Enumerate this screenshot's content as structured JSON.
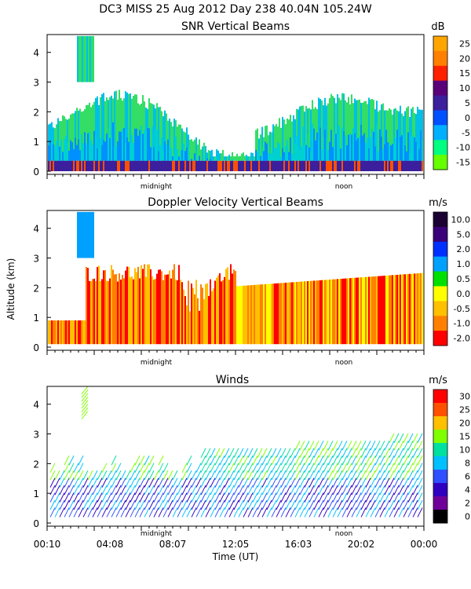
{
  "header": {
    "title": "DC3 MISS  25 Aug 2012 Day 238 40.04N 105.24W"
  },
  "chart_data": [
    {
      "type": "heatmap",
      "title": "SNR Vertical Beams",
      "ylabel": "",
      "ylim": [
        0,
        4.6
      ],
      "yticks": [
        "0",
        "1",
        "2",
        "3",
        "4"
      ],
      "markers": [
        "midnight",
        "noon"
      ],
      "colorbar": {
        "unit": "dB",
        "labels": [
          "25",
          "20",
          "15",
          "10",
          "5",
          "0",
          "-5",
          "-10",
          "-15"
        ],
        "colors": [
          "#ffa500",
          "#ff7f00",
          "#ff2000",
          "#5a0078",
          "#3b1f9c",
          "#0050ff",
          "#00b0ff",
          "#00ff80",
          "#66ff00"
        ]
      }
    },
    {
      "type": "heatmap",
      "title": "Doppler Velocity Vertical Beams",
      "ylabel": "Altitude (km)",
      "ylim": [
        0,
        4.6
      ],
      "yticks": [
        "0",
        "1",
        "2",
        "3",
        "4"
      ],
      "markers": [
        "midnight",
        "noon"
      ],
      "colorbar": {
        "unit": "m/s",
        "labels": [
          "10.0",
          "5.0",
          "2.0",
          "1.0",
          "0.5",
          "0.0",
          "-0.5",
          "-1.0",
          "-2.0"
        ],
        "colors": [
          "#1a0033",
          "#3a007a",
          "#0030ff",
          "#00a0ff",
          "#00e000",
          "#ffff00",
          "#ffc000",
          "#ff8000",
          "#ff0000"
        ]
      }
    },
    {
      "type": "scatter",
      "title": "Winds",
      "xlabel": "Time (UT)",
      "ylim": [
        0,
        4.6
      ],
      "yticks": [
        "0",
        "1",
        "2",
        "3",
        "4"
      ],
      "xticks": [
        "00:10",
        "04:08",
        "08:07",
        "12:05",
        "16:03",
        "20:02",
        "00:00"
      ],
      "markers": [
        "midnight",
        "noon"
      ],
      "colorbar": {
        "unit": "m/s",
        "labels": [
          "30",
          "25",
          "20",
          "15",
          "10",
          "8",
          "6",
          "4",
          "2",
          "0"
        ],
        "colors": [
          "#ff0000",
          "#ff5000",
          "#ffc000",
          "#80ff00",
          "#00e0a0",
          "#00c0ff",
          "#3050ff",
          "#3000c0",
          "#70009a",
          "#000000"
        ]
      }
    }
  ]
}
